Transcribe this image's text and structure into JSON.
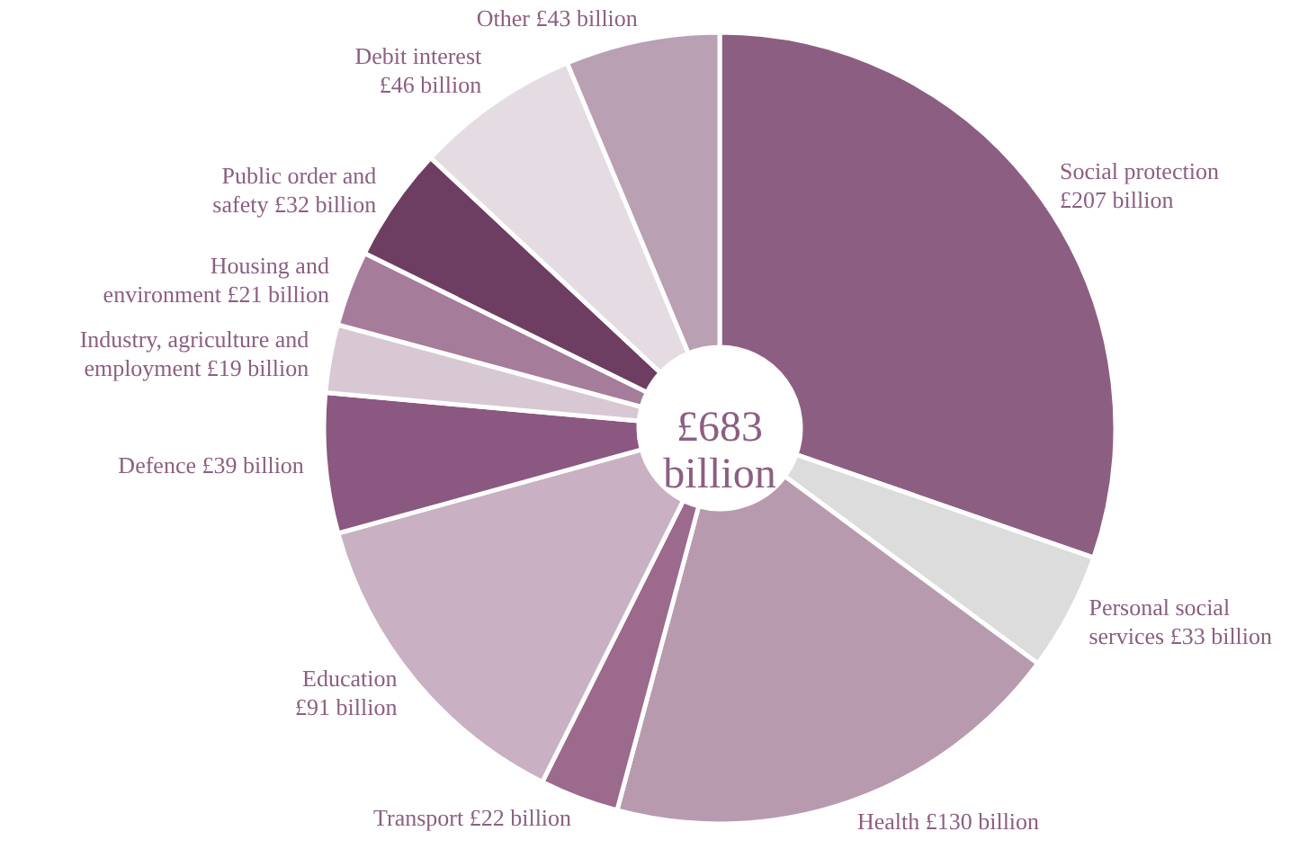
{
  "chart_data": {
    "type": "donut",
    "categories": [
      "Social protection",
      "Personal social services",
      "Health",
      "Transport",
      "Education",
      "Defence",
      "Industry, agriculture and employment",
      "Housing and environment",
      "Public order and safety",
      "Debit interest",
      "Other"
    ],
    "values": [
      207,
      33,
      130,
      22,
      91,
      39,
      19,
      21,
      32,
      46,
      43
    ],
    "value_labels": [
      "£207 billion",
      "£33 billion",
      "£130 billion",
      "£22 billion",
      "£91 billion",
      "£39 billion",
      "£19 billion",
      "£21 billion",
      "£32 billion",
      "£46 billion",
      "£43 billion"
    ],
    "colors": [
      "#8c5f82",
      "#dcdcdc",
      "#b89aaf",
      "#9b6a8d",
      "#c9b0c3",
      "#8a5880",
      "#d8c8d3",
      "#a57c99",
      "#6e3d62",
      "#e5dce3",
      "#b9a0b3"
    ],
    "annotations": [
      "£683 billion"
    ]
  }
}
